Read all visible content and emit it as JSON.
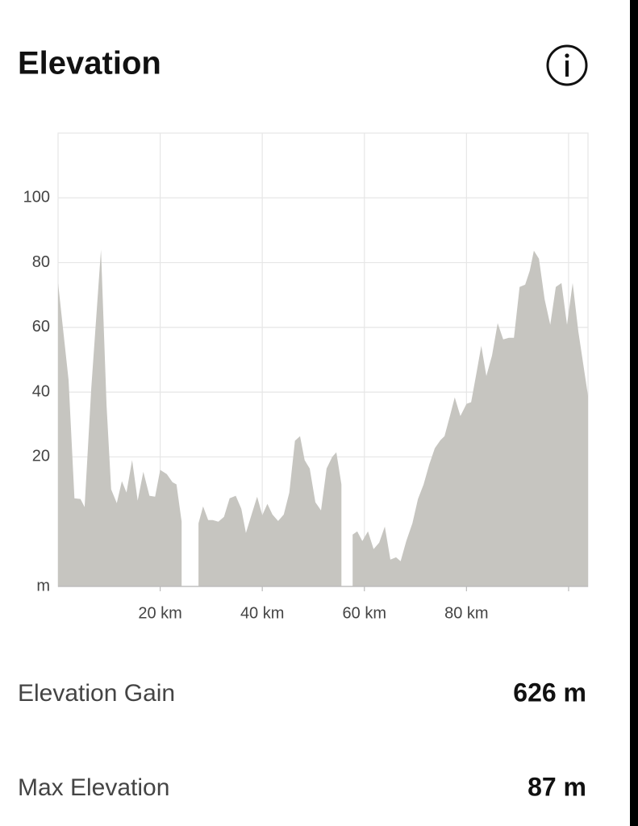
{
  "header": {
    "title": "Elevation"
  },
  "chart_data": {
    "type": "area",
    "x": [
      0,
      2.05,
      3.2,
      4.4,
      5.2,
      6.5,
      8.4,
      9.5,
      10.4,
      11.5,
      12.5,
      13.4,
      14.5,
      15.6,
      16.7,
      17.9,
      19,
      20,
      21.3,
      22.4,
      23.2,
      24.2,
      25.3,
      27.5,
      28.4,
      29.4,
      30.3,
      31.4,
      32.5,
      33.6,
      34.8,
      35.9,
      36.8,
      37.9,
      39,
      40,
      41,
      42,
      43.1,
      44.2,
      45.3,
      46.4,
      47.4,
      48.3,
      49.3,
      50.4,
      51.5,
      52.6,
      53.7,
      54.5,
      55.5,
      56.6,
      57.7,
      58.6,
      59.6,
      60.7,
      61.8,
      62.9,
      64,
      65.1,
      66.2,
      67.1,
      68.2,
      69.4,
      70.5,
      71.6,
      72.7,
      73.8,
      74.9,
      75.7,
      76.8,
      77.7,
      78.8,
      80,
      80.9,
      82,
      82.9,
      83.9,
      85,
      86.1,
      87.2,
      88.3,
      89.3,
      90.4,
      91.5,
      92.4,
      93.2,
      94.2,
      95.3,
      96.4,
      97.5,
      98.6,
      99.7,
      100.8,
      101.9,
      103.8
    ],
    "values": [
      73.7,
      43.8,
      7.2,
      7,
      4.5,
      41,
      84,
      36,
      10,
      5.7,
      12.5,
      9,
      19,
      6.5,
      15.4,
      8,
      7.7,
      16,
      14.7,
      12.2,
      11.5,
      0,
      null,
      -0.5,
      4.7,
      0.5,
      0.5,
      0,
      1.5,
      7.2,
      8,
      4,
      -3.5,
      2.2,
      7.7,
      2,
      5.5,
      2.2,
      0.2,
      2.2,
      9,
      25,
      26.4,
      19,
      16.4,
      6,
      3.5,
      16.4,
      20,
      21.4,
      11.5,
      null,
      -4,
      -3,
      -6,
      -3,
      -8.5,
      -6.5,
      -1.5,
      -11.7,
      -11,
      -12.2,
      -6,
      -0.5,
      7,
      11.5,
      17.7,
      22.7,
      25.2,
      26.4,
      32.9,
      38.4,
      32.6,
      36.4,
      36.9,
      46.3,
      54.3,
      45,
      51.3,
      61.3,
      56.3,
      56.8,
      56.8,
      72.5,
      73.2,
      77.5,
      83.7,
      81.2,
      68.7,
      60.8,
      72.5,
      73.7,
      60.8,
      73.7,
      58.8,
      38.9
    ],
    "color": "#c6c5c0",
    "xlim": [
      0,
      103.8
    ],
    "ylim": [
      -20,
      120
    ],
    "xticks": [
      {
        "value": 20,
        "label": "20 km"
      },
      {
        "value": 40,
        "label": "40 km"
      },
      {
        "value": 60,
        "label": "60 km"
      },
      {
        "value": 80,
        "label": "80 km"
      },
      {
        "value": 100,
        "label": null
      }
    ],
    "yticks": [
      {
        "value": -20,
        "label": "m"
      },
      20,
      40,
      60,
      80,
      100
    ],
    "grid": true
  },
  "stats": [
    {
      "label": "Elevation Gain",
      "value": "626 m"
    },
    {
      "label": "Max Elevation",
      "value": "87 m"
    }
  ]
}
